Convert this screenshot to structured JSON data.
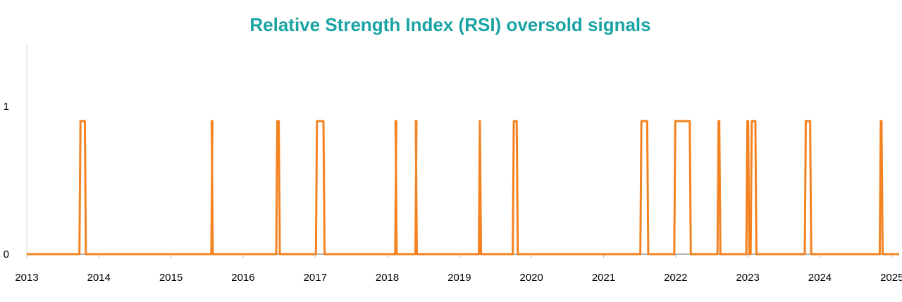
{
  "chart_data": {
    "type": "line",
    "title": "Relative Strength Index (RSI) oversold signals",
    "xlabel": "",
    "ylabel": "",
    "x_ticks": [
      "2013",
      "2014",
      "2015",
      "2016",
      "2017",
      "2018",
      "2019",
      "2020",
      "2021",
      "2022",
      "2023",
      "2024",
      "2025"
    ],
    "y_ticks": [
      "0",
      "1"
    ],
    "xlim": [
      2013.0,
      2025.1
    ],
    "ylim": [
      0,
      1.45
    ],
    "grid": false,
    "legend": "none",
    "series": [
      {
        "color": "#f58220",
        "baseline": 0,
        "value": 0.9,
        "signals": [
          [
            2013.73,
            2013.82
          ],
          [
            2015.56,
            2015.58
          ],
          [
            2016.46,
            2016.51
          ],
          [
            2017.01,
            2017.13
          ],
          [
            2018.11,
            2018.13
          ],
          [
            2018.39,
            2018.41
          ],
          [
            2019.27,
            2019.3
          ],
          [
            2019.74,
            2019.81
          ],
          [
            2021.51,
            2021.62
          ],
          [
            2021.98,
            2022.21
          ],
          [
            2022.58,
            2022.62
          ],
          [
            2022.98,
            2023.02
          ],
          [
            2023.04,
            2023.12
          ],
          [
            2023.79,
            2023.88
          ],
          [
            2024.83,
            2024.87
          ]
        ]
      }
    ]
  }
}
